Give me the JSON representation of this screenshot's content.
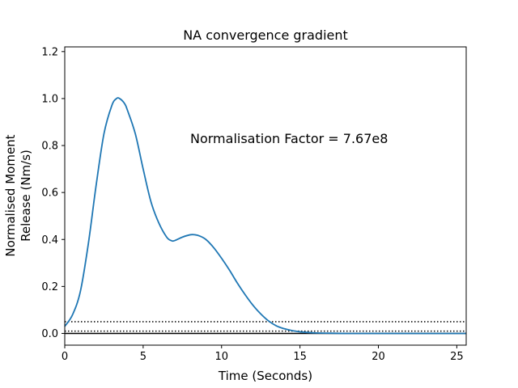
{
  "chart_data": {
    "type": "line",
    "title": "NA convergence gradient",
    "xlabel": "Time (Seconds)",
    "ylabel_lines": [
      "Normalised Moment",
      "Release (Nm/s)"
    ],
    "annotation": "Normalisation Factor = 7.67e8",
    "xlim": [
      0,
      25.6
    ],
    "ylim": [
      -0.05,
      1.22
    ],
    "xticks": [
      0,
      5,
      10,
      15,
      20,
      25
    ],
    "yticks": [
      0.0,
      0.2,
      0.4,
      0.6,
      0.8,
      1.0,
      1.2
    ],
    "xtick_labels": [
      "0",
      "5",
      "10",
      "15",
      "20",
      "25"
    ],
    "ytick_labels": [
      "0.0",
      "0.2",
      "0.4",
      "0.6",
      "0.8",
      "1.0",
      "1.2"
    ],
    "grid": false,
    "series": [
      {
        "color": "#1f77b4",
        "x": [
          0,
          0.5,
          1.0,
          1.5,
          2.0,
          2.5,
          3.0,
          3.3,
          3.5,
          3.8,
          4.0,
          4.5,
          5.0,
          5.5,
          6.0,
          6.5,
          6.8,
          7.0,
          7.5,
          8.0,
          8.3,
          8.6,
          9.0,
          9.5,
          10.0,
          10.5,
          11.0,
          11.5,
          12.0,
          12.5,
          13.0,
          13.5,
          14.0,
          14.5,
          15.0,
          15.5,
          16.0,
          17.0,
          18.0,
          20.0,
          22.0,
          25.6
        ],
        "y": [
          0.03,
          0.08,
          0.18,
          0.38,
          0.63,
          0.85,
          0.97,
          1.0,
          1.0,
          0.98,
          0.95,
          0.85,
          0.7,
          0.56,
          0.47,
          0.41,
          0.395,
          0.395,
          0.41,
          0.42,
          0.42,
          0.415,
          0.4,
          0.365,
          0.32,
          0.27,
          0.215,
          0.165,
          0.12,
          0.083,
          0.053,
          0.032,
          0.02,
          0.012,
          0.007,
          0.004,
          0.002,
          0.001,
          0.0,
          0.0,
          0.0,
          0.0
        ]
      }
    ],
    "reference_lines": [
      {
        "y": 0.05,
        "style": "dotted",
        "color": "#000000"
      },
      {
        "y": 0.01,
        "style": "dotted",
        "color": "#000000"
      },
      {
        "y": 0.0,
        "style": "solid",
        "color": "#000000"
      }
    ]
  }
}
